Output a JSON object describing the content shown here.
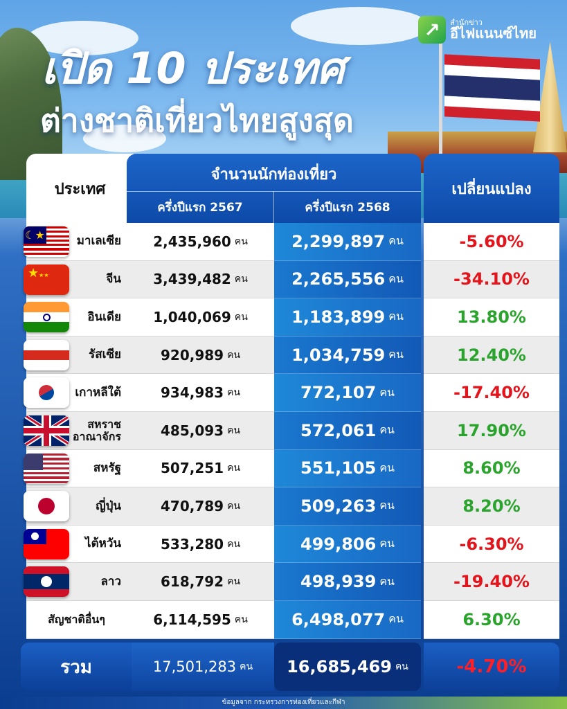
{
  "brand": {
    "small": "สำนักข่าว",
    "name": "อีไฟแนนซ์ไทย",
    "icon": "arrow-up-right-icon",
    "color": "#1fa34a"
  },
  "title": {
    "line1": "เปิด 10 ประเทศ",
    "line2": "ต่างชาติเที่ยวไทยสูงสุด"
  },
  "table": {
    "header_country": "ประเทศ",
    "header_count": "จำนวนนักท่องเที่ยว",
    "header_year1": "ครึ่งปีแรก 2567",
    "header_year2": "ครึ่งปีแรก 2568",
    "header_change": "เปลี่ยนแปลง",
    "unit": "คน",
    "rows": [
      {
        "country": "มาเลเซีย",
        "flag": "malaysia-flag-icon",
        "y2567": "2,435,960",
        "y2568": "2,299,897",
        "change": "-5.60%",
        "trend": "neg"
      },
      {
        "country": "จีน",
        "flag": "china-flag-icon",
        "y2567": "3,439,482",
        "y2568": "2,265,556",
        "change": "-34.10%",
        "trend": "neg"
      },
      {
        "country": "อินเดีย",
        "flag": "india-flag-icon",
        "y2567": "1,040,069",
        "y2568": "1,183,899",
        "change": "13.80%",
        "trend": "pos"
      },
      {
        "country": "รัสเซีย",
        "flag": "russia-flag-icon",
        "y2567": "920,989",
        "y2568": "1,034,759",
        "change": "12.40%",
        "trend": "pos"
      },
      {
        "country": "เกาหลีใต้",
        "flag": "south-korea-flag-icon",
        "y2567": "934,983",
        "y2568": "772,107",
        "change": "-17.40%",
        "trend": "neg"
      },
      {
        "country": "สหราช อาณาจักร",
        "flag": "uk-flag-icon",
        "y2567": "485,093",
        "y2568": "572,061",
        "change": "17.90%",
        "trend": "pos"
      },
      {
        "country": "สหรัฐ",
        "flag": "usa-flag-icon",
        "y2567": "507,251",
        "y2568": "551,105",
        "change": "8.60%",
        "trend": "pos"
      },
      {
        "country": "ญี่ปุ่น",
        "flag": "japan-flag-icon",
        "y2567": "470,789",
        "y2568": "509,263",
        "change": "8.20%",
        "trend": "pos"
      },
      {
        "country": "ไต้หวัน",
        "flag": "taiwan-flag-icon",
        "y2567": "533,280",
        "y2568": "499,806",
        "change": "-6.30%",
        "trend": "neg"
      },
      {
        "country": "ลาว",
        "flag": "laos-flag-icon",
        "y2567": "618,792",
        "y2568": "498,939",
        "change": "-19.40%",
        "trend": "neg"
      },
      {
        "country": "สัญชาติอื่นๆ",
        "flag": "",
        "y2567": "6,114,595",
        "y2568": "6,498,077",
        "change": "6.30%",
        "trend": "pos"
      }
    ],
    "total": {
      "label": "รวม",
      "y2567": "17,501,283",
      "y2568": "16,685,469",
      "change": "-4.70%"
    }
  },
  "source": "ข้อมูลจาก กระทรวงการท่องเที่ยวและกีฬา",
  "colors": {
    "negative": "#e3141b",
    "positive": "#2aa42c",
    "header_blue": "#0d4aa8"
  }
}
